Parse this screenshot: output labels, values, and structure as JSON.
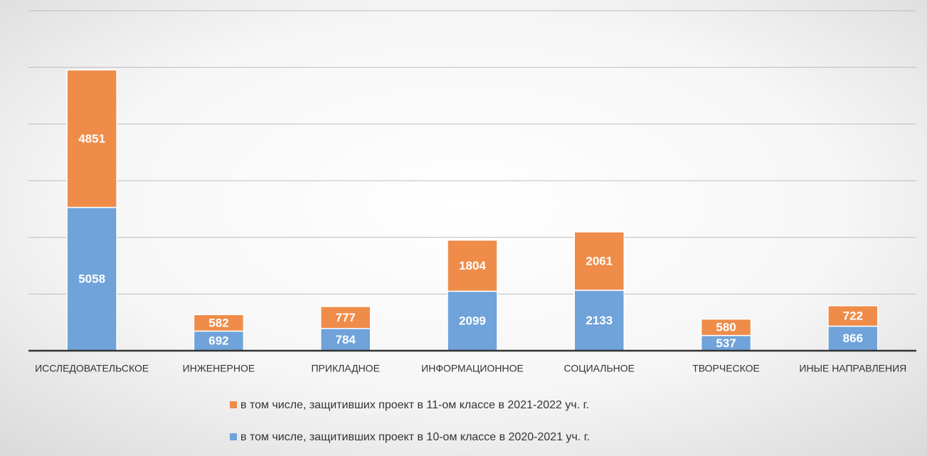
{
  "chart_data": {
    "type": "stacked_bar",
    "categories": [
      "ИССЛЕДОВАТЕЛЬСКОЕ",
      "ИНЖЕНЕРНОЕ",
      "ПРИКЛАДНОЕ",
      "ИНФОРМАЦИОННОЕ",
      "СОЦИАЛЬНОЕ",
      "ТВОРЧЕСКОЕ",
      "ИНЫЕ НАПРАВЛЕНИЯ"
    ],
    "series": [
      {
        "name": "в том числе, защитивших проект в 10-ом классе в 2020-2021  уч. г.",
        "color": "#6fa3d9",
        "values": [
          5058,
          692,
          784,
          2099,
          2133,
          537,
          866
        ]
      },
      {
        "name": "в том числе, защитивших проект в 11-ом классе в 2021-2022  уч. г.",
        "color": "#ef8c4a",
        "values": [
          4851,
          582,
          777,
          1804,
          2061,
          580,
          722
        ]
      }
    ],
    "ylim": [
      0,
      12000
    ],
    "yticks": [
      0,
      2000,
      4000,
      6000,
      8000,
      10000,
      12000
    ],
    "grid": true
  }
}
